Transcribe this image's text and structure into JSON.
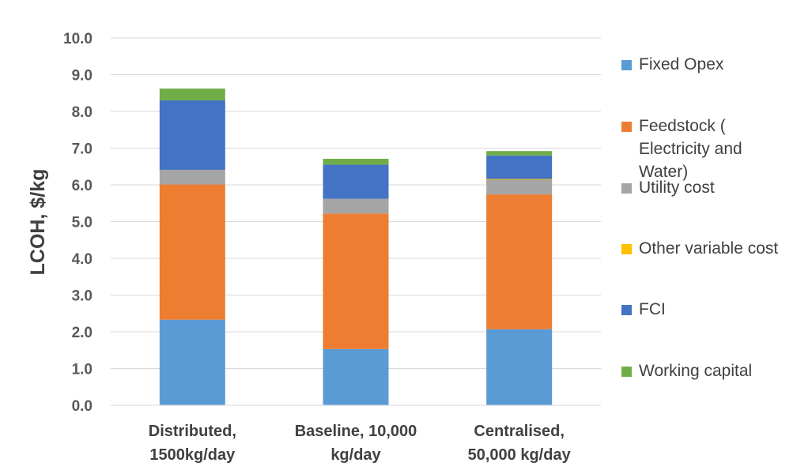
{
  "chart_data": {
    "type": "bar",
    "stacked": true,
    "categories": [
      [
        "Distributed,",
        "1500kg/day"
      ],
      [
        "Baseline, 10,000",
        "kg/day"
      ],
      [
        "Centralised,",
        "50,000 kg/day"
      ]
    ],
    "ylabel": "LCOH, $/kg",
    "ylim": [
      0,
      10
    ],
    "yticks": [
      "0.0",
      "1.0",
      "2.0",
      "3.0",
      "4.0",
      "5.0",
      "6.0",
      "7.0",
      "8.0",
      "9.0",
      "10.0"
    ],
    "grid": true,
    "legend_position": "right",
    "series": [
      {
        "name": "Fixed Opex",
        "color": "#5b9bd5",
        "values": [
          2.33,
          1.53,
          2.07
        ]
      },
      {
        "name": "Feedstock ( Electricity and Water)",
        "color": "#ed7d31",
        "values": [
          3.68,
          3.69,
          3.67
        ]
      },
      {
        "name": "Utility cost",
        "color": "#a5a5a5",
        "values": [
          0.4,
          0.4,
          0.4
        ]
      },
      {
        "name": "Other variable cost",
        "color": "#ffc000",
        "values": [
          0.0,
          0.0,
          0.02
        ]
      },
      {
        "name": "FCI",
        "color": "#4472c4",
        "values": [
          1.89,
          0.93,
          0.64
        ]
      },
      {
        "name": "Working capital",
        "color": "#70ad47",
        "values": [
          0.32,
          0.16,
          0.12
        ]
      }
    ]
  }
}
